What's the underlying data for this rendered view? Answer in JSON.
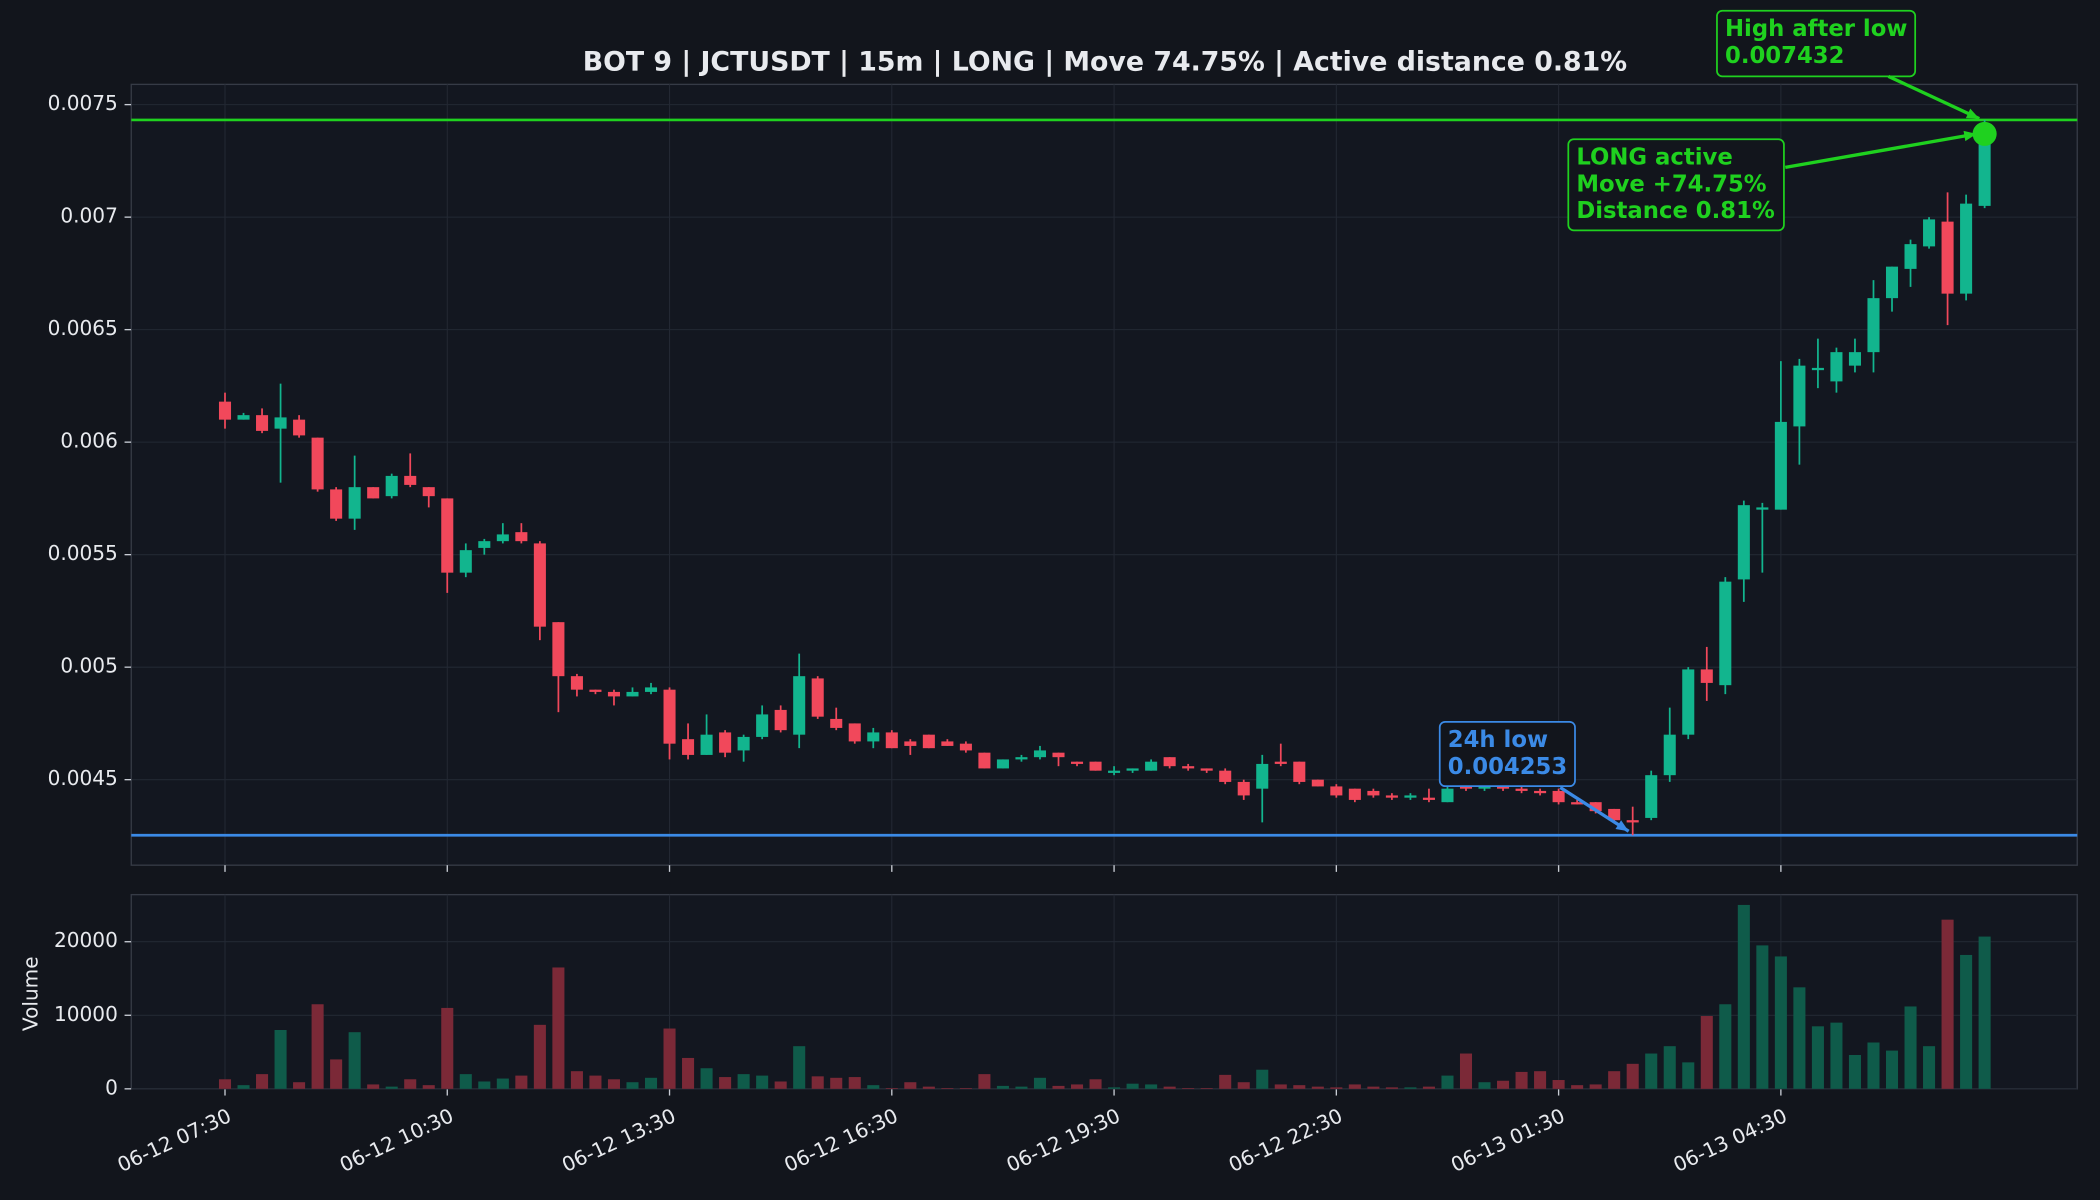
{
  "chart_data": [
    {
      "type": "candlestick",
      "title": "BOT 9 | JCTUSDT | 15m | LONG | Move 74.75% | Active distance 0.81%",
      "categories": [
        "06-12 07:30",
        null,
        null,
        null,
        null,
        null,
        null,
        null,
        null,
        null,
        null,
        null,
        "06-12 10:30",
        null,
        null,
        null,
        null,
        null,
        null,
        null,
        null,
        null,
        null,
        null,
        "06-12 13:30",
        null,
        null,
        null,
        null,
        null,
        null,
        null,
        null,
        null,
        null,
        null,
        "06-12 16:30",
        null,
        null,
        null,
        null,
        null,
        null,
        null,
        null,
        null,
        null,
        null,
        "06-12 19:30",
        null,
        null,
        null,
        null,
        null,
        null,
        null,
        null,
        null,
        null,
        null,
        "06-12 22:30",
        null,
        null,
        null,
        null,
        null,
        null,
        null,
        null,
        null,
        null,
        null,
        "06-13 01:30",
        null,
        null,
        null,
        null,
        null,
        null,
        null,
        null,
        null,
        null,
        null,
        "06-13 04:30",
        null,
        null,
        null,
        null,
        null,
        null,
        null,
        null,
        null,
        null,
        null
      ],
      "open": [
        0.00618,
        0.0061,
        0.00612,
        0.00606,
        0.0061,
        0.00602,
        0.00579,
        0.00566,
        0.0058,
        0.00576,
        0.00585,
        0.0058,
        0.00575,
        0.00542,
        0.00553,
        0.00556,
        0.0056,
        0.00555,
        0.0052,
        0.00496,
        0.0049,
        0.00489,
        0.00487,
        0.00489,
        0.0049,
        0.00468,
        0.00461,
        0.00471,
        0.00463,
        0.00469,
        0.00481,
        0.0047,
        0.00495,
        0.00477,
        0.00475,
        0.00467,
        0.00471,
        0.00467,
        0.0047,
        0.00467,
        0.00466,
        0.00462,
        0.00455,
        0.00459,
        0.0046,
        0.00462,
        0.00458,
        0.00458,
        0.00453,
        0.00454,
        0.00454,
        0.0046,
        0.00456,
        0.00455,
        0.00454,
        0.00449,
        0.00446,
        0.00458,
        0.00458,
        0.0045,
        0.00447,
        0.00446,
        0.00445,
        0.00443,
        0.00442,
        0.00442,
        0.0044,
        0.00448,
        0.00446,
        0.00447,
        0.00446,
        0.00445,
        0.00445,
        0.0044,
        0.0044,
        0.00437,
        0.00432,
        0.00433,
        0.00452,
        0.0047,
        0.00499,
        0.00492,
        0.00539,
        0.0057,
        0.0057,
        0.00607,
        0.00632,
        0.00627,
        0.00634,
        0.0064,
        0.00664,
        0.00677,
        0.00687,
        0.00698,
        0.00666,
        0.00705
      ],
      "high": [
        0.00622,
        0.00613,
        0.00615,
        0.00626,
        0.00612,
        0.00602,
        0.0058,
        0.00594,
        0.0058,
        0.00586,
        0.00595,
        0.0058,
        0.00575,
        0.00555,
        0.00557,
        0.00564,
        0.00564,
        0.00556,
        0.0052,
        0.00497,
        0.0049,
        0.0049,
        0.00491,
        0.00493,
        0.00491,
        0.00475,
        0.00479,
        0.00472,
        0.0047,
        0.00483,
        0.00483,
        0.00506,
        0.00496,
        0.00482,
        0.00475,
        0.00473,
        0.00472,
        0.00468,
        0.0047,
        0.00468,
        0.00467,
        0.00462,
        0.00459,
        0.00461,
        0.00465,
        0.00462,
        0.00458,
        0.00458,
        0.00456,
        0.00455,
        0.00459,
        0.0046,
        0.00457,
        0.00455,
        0.00455,
        0.0045,
        0.00461,
        0.00466,
        0.00458,
        0.0045,
        0.00448,
        0.00446,
        0.00446,
        0.00444,
        0.00444,
        0.00446,
        0.00447,
        0.00449,
        0.00448,
        0.00448,
        0.00447,
        0.00446,
        0.00446,
        0.00441,
        0.0044,
        0.00437,
        0.00438,
        0.00454,
        0.00482,
        0.005,
        0.00509,
        0.0054,
        0.00574,
        0.00573,
        0.00636,
        0.00637,
        0.00646,
        0.00642,
        0.00646,
        0.00672,
        0.00678,
        0.0069,
        0.007,
        0.00711,
        0.0071,
        0.007432
      ],
      "low": [
        0.00606,
        0.0061,
        0.00604,
        0.00582,
        0.00602,
        0.00578,
        0.00565,
        0.00561,
        0.00575,
        0.00575,
        0.0058,
        0.00571,
        0.00533,
        0.0054,
        0.0055,
        0.00555,
        0.00555,
        0.00512,
        0.0048,
        0.00487,
        0.00488,
        0.00483,
        0.00487,
        0.00488,
        0.00459,
        0.00459,
        0.00461,
        0.0046,
        0.00458,
        0.00468,
        0.00471,
        0.00464,
        0.00477,
        0.00472,
        0.00466,
        0.00464,
        0.00464,
        0.00461,
        0.00464,
        0.00465,
        0.00462,
        0.00455,
        0.00455,
        0.00458,
        0.00459,
        0.00456,
        0.00456,
        0.00454,
        0.00452,
        0.00453,
        0.00454,
        0.00455,
        0.00454,
        0.00453,
        0.00448,
        0.00441,
        0.00431,
        0.00456,
        0.00448,
        0.00447,
        0.00442,
        0.0044,
        0.00442,
        0.00441,
        0.00441,
        0.0044,
        0.0044,
        0.00445,
        0.00445,
        0.00445,
        0.00444,
        0.00443,
        0.00439,
        0.00439,
        0.00435,
        0.00431,
        0.004253,
        0.00432,
        0.00449,
        0.00468,
        0.00485,
        0.00488,
        0.00529,
        0.00542,
        0.0057,
        0.0059,
        0.00624,
        0.00622,
        0.00631,
        0.00631,
        0.00658,
        0.00669,
        0.00686,
        0.00652,
        0.00663,
        0.00704
      ],
      "close": [
        0.0061,
        0.00612,
        0.00605,
        0.00611,
        0.00603,
        0.00579,
        0.00566,
        0.0058,
        0.00575,
        0.00585,
        0.00581,
        0.00576,
        0.00542,
        0.00552,
        0.00556,
        0.00559,
        0.00556,
        0.00518,
        0.00496,
        0.0049,
        0.00489,
        0.00487,
        0.00489,
        0.00491,
        0.00466,
        0.00461,
        0.0047,
        0.00462,
        0.00469,
        0.00479,
        0.00472,
        0.00496,
        0.00478,
        0.00473,
        0.00467,
        0.00471,
        0.00464,
        0.00465,
        0.00464,
        0.00465,
        0.00463,
        0.00455,
        0.00459,
        0.0046,
        0.00463,
        0.0046,
        0.00457,
        0.00454,
        0.00454,
        0.00455,
        0.00458,
        0.00456,
        0.00455,
        0.00454,
        0.00449,
        0.00443,
        0.00457,
        0.00457,
        0.00449,
        0.00447,
        0.00443,
        0.00441,
        0.00443,
        0.00442,
        0.00443,
        0.00441,
        0.00446,
        0.00446,
        0.00447,
        0.00446,
        0.00445,
        0.00444,
        0.0044,
        0.00439,
        0.00436,
        0.00432,
        0.00431,
        0.00452,
        0.0047,
        0.00499,
        0.00493,
        0.00538,
        0.00572,
        0.00571,
        0.00609,
        0.00634,
        0.00633,
        0.0064,
        0.0064,
        0.00664,
        0.00678,
        0.00688,
        0.00699,
        0.00666,
        0.00706,
        0.00737
      ],
      "up_color": "#12b58e",
      "down_color": "#f1485b",
      "ylim": [
        0.00412,
        0.00759
      ],
      "yticks": [
        0.0045,
        0.005,
        0.0055,
        0.006,
        0.0065,
        0.007,
        0.0075
      ],
      "grid": true,
      "hlines": [
        {
          "label": "High after low",
          "value": 0.007432,
          "color": "#1fd11f"
        },
        {
          "label": "24h low",
          "value": 0.004253,
          "color": "#3b8ae6"
        }
      ],
      "status": {
        "lines": [
          "LONG active",
          "Move +74.75%",
          "Distance 0.81%"
        ],
        "color": "#1fd11f"
      }
    },
    {
      "type": "bar",
      "ylabel": "Volume",
      "values": [
        1300,
        500,
        2000,
        8000,
        900,
        11500,
        4000,
        7700,
        600,
        300,
        1300,
        500,
        11000,
        2000,
        1000,
        1400,
        1800,
        8700,
        16500,
        2400,
        1800,
        1300,
        900,
        1500,
        8200,
        4200,
        2800,
        1600,
        2000,
        1800,
        1000,
        5800,
        1700,
        1500,
        1600,
        500,
        100,
        900,
        300,
        100,
        100,
        2000,
        400,
        300,
        1500,
        400,
        600,
        1300,
        200,
        700,
        600,
        300,
        100,
        100,
        1900,
        900,
        2600,
        600,
        500,
        300,
        200,
        600,
        300,
        200,
        200,
        300,
        1800,
        4800,
        900,
        1100,
        2300,
        2400,
        1200,
        500,
        600,
        2400,
        3400,
        4800,
        5800,
        3600,
        9900,
        11500,
        25000,
        19500,
        18000,
        13800,
        8500,
        9000,
        4600,
        6300,
        5200,
        11200,
        5800,
        23000,
        18200,
        20700
      ],
      "up_color": "#0f5b4a",
      "down_color": "#7b2937",
      "ylim": [
        0,
        26400
      ],
      "yticks": [
        0,
        10000,
        20000
      ],
      "grid": true
    }
  ]
}
